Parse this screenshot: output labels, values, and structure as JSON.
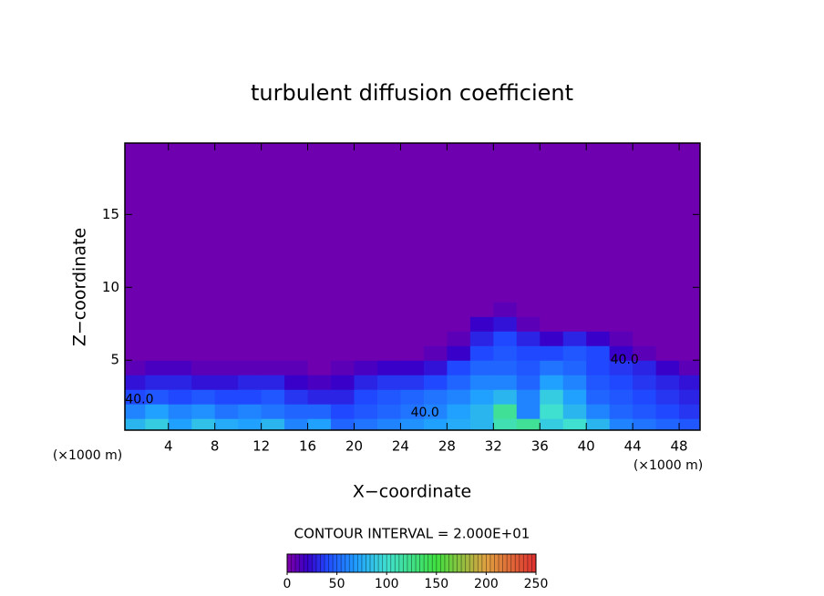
{
  "chart_data": {
    "type": "heatmap",
    "title": "turbulent diffusion coefficient",
    "x_label": "X−coordinate",
    "y_label": "Z−coordinate",
    "x_unit": "(×1000 m)",
    "x_unit_right": "(×1000 m)",
    "contour_note": "CONTOUR INTERVAL = 2.000E+01",
    "xlim": [
      0.25,
      49.8
    ],
    "ylim": [
      0.2,
      19.9
    ],
    "xticks": [
      4,
      8,
      12,
      16,
      20,
      24,
      28,
      32,
      36,
      40,
      44,
      48
    ],
    "yticks": [
      5,
      10,
      15
    ],
    "x_edges": [
      0,
      2,
      4,
      6,
      8,
      10,
      12,
      14,
      16,
      18,
      20,
      22,
      24,
      26,
      28,
      30,
      32,
      34,
      36,
      38,
      40,
      42,
      44,
      46,
      48,
      50
    ],
    "z_edges": [
      0,
      1,
      2,
      3,
      4,
      5,
      6,
      7,
      8,
      9,
      10,
      20
    ],
    "z": [
      [
        80,
        90,
        70,
        85,
        75,
        70,
        80,
        60,
        70,
        50,
        55,
        60,
        65,
        70,
        75,
        80,
        110,
        120,
        90,
        100,
        80,
        60,
        55,
        50,
        45
      ],
      [
        60,
        70,
        60,
        65,
        55,
        60,
        55,
        50,
        50,
        40,
        45,
        50,
        55,
        60,
        70,
        80,
        120,
        60,
        100,
        80,
        60,
        50,
        45,
        40,
        35
      ],
      [
        40,
        45,
        40,
        45,
        40,
        40,
        45,
        35,
        30,
        30,
        40,
        45,
        50,
        55,
        60,
        70,
        80,
        60,
        90,
        70,
        50,
        45,
        40,
        35,
        30
      ],
      [
        25,
        30,
        30,
        25,
        25,
        30,
        30,
        20,
        15,
        20,
        30,
        35,
        35,
        40,
        50,
        60,
        60,
        50,
        70,
        60,
        45,
        40,
        35,
        30,
        25
      ],
      [
        10,
        15,
        15,
        10,
        10,
        10,
        10,
        10,
        5,
        10,
        15,
        20,
        20,
        25,
        40,
        50,
        50,
        45,
        55,
        50,
        40,
        35,
        30,
        20,
        10
      ],
      [
        5,
        5,
        5,
        5,
        5,
        5,
        5,
        5,
        5,
        5,
        5,
        5,
        5,
        10,
        20,
        40,
        45,
        40,
        40,
        45,
        40,
        20,
        10,
        5,
        5
      ],
      [
        5,
        5,
        5,
        5,
        5,
        5,
        5,
        5,
        5,
        5,
        5,
        5,
        5,
        5,
        10,
        30,
        40,
        30,
        20,
        30,
        20,
        10,
        5,
        5,
        5
      ],
      [
        5,
        5,
        5,
        5,
        5,
        5,
        5,
        5,
        5,
        5,
        5,
        5,
        5,
        5,
        5,
        20,
        25,
        10,
        5,
        5,
        5,
        5,
        5,
        5,
        5
      ],
      [
        5,
        5,
        5,
        5,
        5,
        5,
        5,
        5,
        5,
        5,
        5,
        5,
        5,
        5,
        5,
        5,
        10,
        5,
        5,
        5,
        5,
        5,
        5,
        5,
        5
      ],
      [
        5,
        5,
        5,
        5,
        5,
        5,
        5,
        5,
        5,
        5,
        5,
        5,
        5,
        5,
        5,
        5,
        5,
        5,
        5,
        5,
        5,
        5,
        5,
        5,
        5
      ],
      [
        5,
        5,
        5,
        5,
        5,
        5,
        5,
        5,
        5,
        5,
        5,
        5,
        5,
        5,
        5,
        5,
        5,
        5,
        5,
        5,
        5,
        5,
        5,
        5,
        5
      ]
    ],
    "colorscale": [
      [
        0,
        "#8000a8"
      ],
      [
        20,
        "#3800c8"
      ],
      [
        40,
        "#2048ff"
      ],
      [
        70,
        "#20a0ff"
      ],
      [
        100,
        "#40e0d0"
      ],
      [
        150,
        "#40e040"
      ],
      [
        200,
        "#e0a040"
      ],
      [
        250,
        "#e03030"
      ]
    ],
    "contour_labels": [
      {
        "x": 26.1,
        "z": 1.4,
        "label": "40.0"
      },
      {
        "x": 43.3,
        "z": 5.0,
        "label": "40.0"
      },
      {
        "x": 1.5,
        "z": 2.3,
        "label": "40.0"
      }
    ],
    "colorbar": {
      "lim": [
        0,
        250
      ],
      "ticks": [
        0,
        50,
        100,
        150,
        200,
        250
      ]
    }
  }
}
